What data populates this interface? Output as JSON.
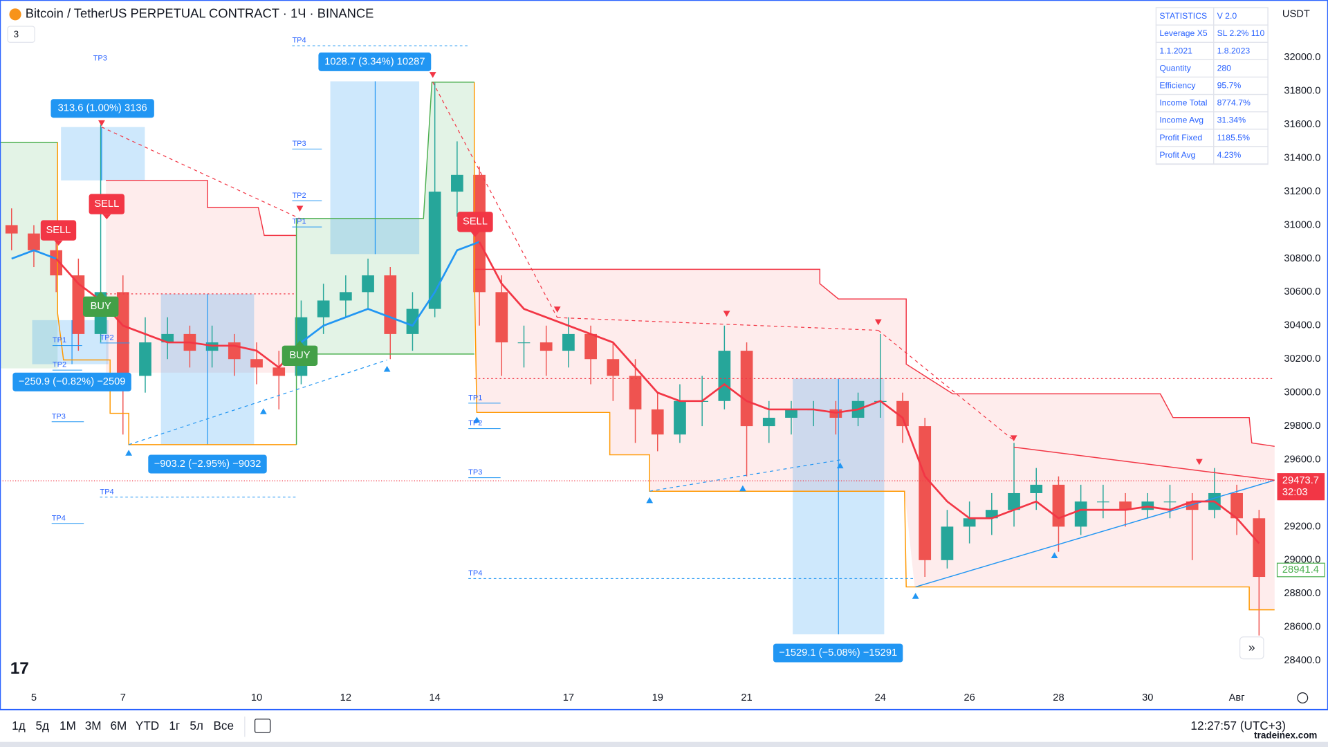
{
  "header": {
    "title": "Bitcoin / TetherUS PERPETUAL CONTRACT · 1Ч · BINANCE",
    "indicators": "3",
    "currency": "USDT"
  },
  "chart_data": {
    "type": "candlestick",
    "x": [
      4.5,
      5,
      5.5,
      6,
      6.5,
      7,
      7.5,
      8,
      8.5,
      9,
      9.5,
      10,
      10.5,
      11,
      11.5,
      12,
      12.5,
      13,
      13.5,
      14,
      14.5,
      15,
      15.5,
      16,
      16.5,
      17,
      17.5,
      18,
      18.5,
      19,
      19.5,
      20,
      20.5,
      21,
      21.5,
      22,
      22.5,
      23,
      23.5,
      24,
      24.5,
      25,
      25.5,
      26,
      26.5,
      27,
      27.5,
      28,
      28.5,
      29,
      29.5,
      30,
      30.5,
      31,
      31.5,
      32,
      32.5
    ],
    "candles": [
      [
        31000,
        31100,
        30850,
        30950
      ],
      [
        30950,
        31000,
        30750,
        30850
      ],
      [
        30850,
        30950,
        30600,
        30700
      ],
      [
        30700,
        30800,
        30250,
        30350
      ],
      [
        30350,
        31600,
        30300,
        30600
      ],
      [
        30600,
        30700,
        29750,
        30100
      ],
      [
        30100,
        30450,
        30000,
        30300
      ],
      [
        30300,
        30450,
        30200,
        30350
      ],
      [
        30350,
        30400,
        30150,
        30250
      ],
      [
        30250,
        30400,
        30150,
        30300
      ],
      [
        30300,
        30350,
        30100,
        30200
      ],
      [
        30200,
        30300,
        30050,
        30150
      ],
      [
        30150,
        30250,
        29900,
        30100
      ],
      [
        30100,
        30550,
        30050,
        30450
      ],
      [
        30450,
        30650,
        30350,
        30550
      ],
      [
        30550,
        30700,
        30450,
        30600
      ],
      [
        30600,
        30800,
        30500,
        30700
      ],
      [
        30700,
        30750,
        30200,
        30350
      ],
      [
        30350,
        30600,
        30250,
        30500
      ],
      [
        30500,
        31850,
        30450,
        31200
      ],
      [
        31200,
        31500,
        31050,
        31300
      ],
      [
        31300,
        31350,
        30400,
        30600
      ],
      [
        30600,
        30700,
        30100,
        30300
      ],
      [
        30300,
        30400,
        30150,
        30300
      ],
      [
        30300,
        30400,
        30100,
        30250
      ],
      [
        30250,
        30450,
        30150,
        30350
      ],
      [
        30350,
        30400,
        30050,
        30200
      ],
      [
        30200,
        30300,
        29950,
        30100
      ],
      [
        30100,
        30200,
        29700,
        29900
      ],
      [
        29900,
        30000,
        29650,
        29750
      ],
      [
        29750,
        30050,
        29700,
        29950
      ],
      [
        29950,
        30100,
        29800,
        29950
      ],
      [
        29950,
        30400,
        29900,
        30250
      ],
      [
        30250,
        30300,
        29500,
        29800
      ],
      [
        29800,
        29950,
        29700,
        29850
      ],
      [
        29850,
        29950,
        29750,
        29900
      ],
      [
        29900,
        29950,
        29800,
        29900
      ],
      [
        29900,
        29950,
        29750,
        29850
      ],
      [
        29850,
        30000,
        29800,
        29950
      ],
      [
        29950,
        30350,
        29850,
        29950
      ],
      [
        29950,
        30000,
        29700,
        29800
      ],
      [
        29800,
        29850,
        28900,
        29000
      ],
      [
        29000,
        29300,
        28950,
        29200
      ],
      [
        29200,
        29350,
        29100,
        29250
      ],
      [
        29250,
        29400,
        29150,
        29300
      ],
      [
        29300,
        29700,
        29200,
        29400
      ],
      [
        29400,
        29550,
        29300,
        29450
      ],
      [
        29450,
        29500,
        29050,
        29200
      ],
      [
        29200,
        29450,
        29150,
        29350
      ],
      [
        29350,
        29450,
        29250,
        29350
      ],
      [
        29350,
        29400,
        29200,
        29300
      ],
      [
        29300,
        29400,
        29250,
        29350
      ],
      [
        29350,
        29450,
        29250,
        29350
      ],
      [
        29350,
        29400,
        29000,
        29300
      ],
      [
        29300,
        29550,
        29250,
        29400
      ],
      [
        29400,
        29450,
        29150,
        29250
      ],
      [
        29250,
        29300,
        28550,
        28900
      ]
    ],
    "colors": {
      "up": "#26a69a",
      "down": "#ef5350"
    },
    "series": [
      {
        "color": "#2196f3",
        "values": [
          30800,
          30850,
          30800,
          null,
          null,
          null,
          null,
          null,
          null,
          null,
          null,
          null,
          null,
          30300,
          30400,
          30450,
          30500,
          30450,
          30400,
          30600,
          30850,
          30900,
          null,
          null,
          null,
          null,
          null,
          null,
          null,
          null,
          null,
          null,
          null,
          null,
          null,
          null,
          null,
          null,
          null,
          null,
          null,
          null,
          null,
          null,
          null,
          null,
          null,
          null,
          null,
          null,
          null,
          null,
          null,
          null,
          null,
          null,
          null
        ]
      },
      {
        "color": "#f23645",
        "values": [
          null,
          null,
          30800,
          30650,
          30550,
          30400,
          30350,
          30300,
          30300,
          30280,
          30280,
          30250,
          30150,
          30300,
          null,
          null,
          null,
          null,
          null,
          null,
          null,
          30900,
          30650,
          30500,
          30450,
          30400,
          30350,
          30300,
          30150,
          30000,
          29950,
          29950,
          30050,
          29950,
          29900,
          29900,
          29900,
          29880,
          29900,
          29950,
          29850,
          29500,
          29350,
          29250,
          29250,
          29300,
          29350,
          29250,
          29300,
          29300,
          29300,
          29320,
          29300,
          29350,
          29350,
          29250,
          29100
        ]
      }
    ],
    "xlim": [
      4.24,
      32.85
    ],
    "ylim": [
      28117,
      32344
    ],
    "xticks": [
      5,
      7,
      10,
      12,
      14,
      17,
      19,
      21,
      24,
      26,
      28,
      30,
      {
        "value": 32,
        "label": "Авг"
      }
    ],
    "yticks": [
      {
        "value": 28400,
        "label": "28400.0"
      },
      {
        "value": 28600,
        "label": "28600.0"
      },
      {
        "value": 28800,
        "label": "28800.0"
      },
      {
        "value": 29000,
        "label": "29000.0"
      },
      {
        "value": 29200,
        "label": "29200.0"
      },
      {
        "value": 29400,
        "label": "29400.0"
      },
      {
        "value": 29600,
        "label": "29600.0"
      },
      {
        "value": 29800,
        "label": "29800.0"
      },
      {
        "value": 30000,
        "label": "30000.0"
      },
      {
        "value": 30200,
        "label": "30200.0"
      },
      {
        "value": 30400,
        "label": "30400.0"
      },
      {
        "value": 30600,
        "label": "30600.0"
      },
      {
        "value": 30800,
        "label": "30800.0"
      },
      {
        "value": 31000,
        "label": "31000.0"
      },
      {
        "value": 31200,
        "label": "31200.0"
      },
      {
        "value": 31400,
        "label": "31400.0"
      },
      {
        "value": 31600,
        "label": "31600.0"
      },
      {
        "value": 31800,
        "label": "31800.0"
      },
      {
        "value": 32000,
        "label": "32000.0"
      }
    ],
    "grid": false,
    "last_price": 29473.7,
    "countdown": "32:03",
    "marker_price": 28941.4,
    "trade_labels": [
      "313.6 (1.00%) 3136",
      "1028.7 (3.34%) 10287",
      "−250.9 (−0.82%) −2509",
      "−903.2 (−2.95%) −9032",
      "−1529.1 (−5.08%) −15291"
    ],
    "signals": [
      "SELL",
      "SELL",
      "SELL",
      "BUY",
      "BUY"
    ],
    "tp_labels": [
      "TP3",
      "TP4",
      "TP3",
      "TP2",
      "TP1",
      "TP1",
      "TP2",
      "TP3",
      "TP4",
      "TP2",
      "TP4",
      "TP1",
      "TP2",
      "TP3",
      "TP4"
    ]
  },
  "statistics": {
    "rows": [
      [
        "STATISTICS",
        "V 2.0"
      ],
      [
        "Leverage X5",
        "SL 2.2% 110"
      ],
      [
        "1.1.2021",
        "1.8.2023"
      ],
      [
        "Quantity",
        "280"
      ],
      [
        "Efficiency",
        "95.7%"
      ],
      [
        "Income Total",
        "8774.7%"
      ],
      [
        "Income Avg",
        "31.34%"
      ],
      [
        "Profit Fixed",
        "1185.5%"
      ],
      [
        "Profit Avg",
        "4.23%"
      ]
    ]
  },
  "toolbar": {
    "ranges": [
      "1д",
      "5д",
      "1М",
      "3М",
      "6М",
      "YTD",
      "1г",
      "5л",
      "Все"
    ],
    "time": "12:27:57 (UTC+3)"
  },
  "watermark": "tradeinex.com"
}
